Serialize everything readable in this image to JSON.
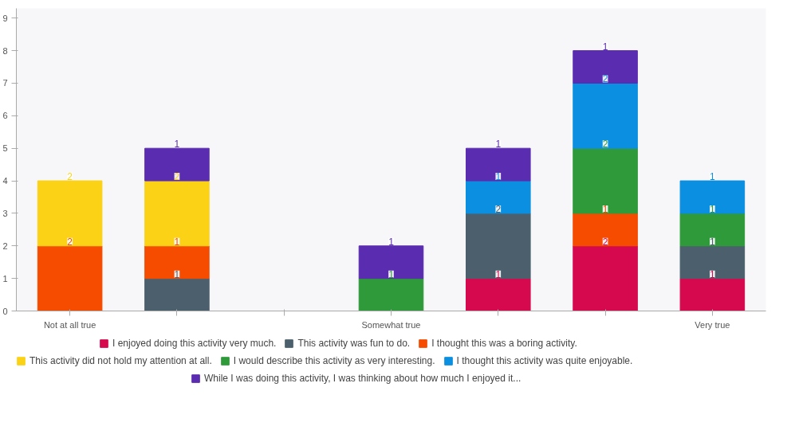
{
  "chart_data": {
    "type": "bar",
    "stacked": true,
    "categories": [
      "Not at all true",
      null,
      null,
      "Somewhat true",
      null,
      null,
      "Very true"
    ],
    "ylim": [
      0,
      9.3
    ],
    "yticks": [
      0,
      1,
      2,
      3,
      4,
      5,
      6,
      7,
      8,
      9
    ],
    "grid": false,
    "legend": "bottom",
    "data_labels": true,
    "series": [
      {
        "name": "I enjoyed doing this activity very much.",
        "color": "#d6094f",
        "values": [
          null,
          null,
          null,
          null,
          1,
          2,
          1
        ]
      },
      {
        "name": "This activity was fun to do.",
        "color": "#4b606c",
        "values": [
          null,
          1,
          null,
          null,
          2,
          null,
          1
        ]
      },
      {
        "name": "I thought this was a boring activity.",
        "color": "#f54c00",
        "values": [
          2,
          1,
          null,
          null,
          null,
          1,
          null
        ]
      },
      {
        "name": "This activity did not hold my attention at all.",
        "color": "#fbd215",
        "values": [
          2,
          2,
          null,
          null,
          null,
          null,
          null
        ]
      },
      {
        "name": "I would describe this activity as very interesting.",
        "color": "#2f9a3a",
        "values": [
          null,
          null,
          null,
          1,
          null,
          2,
          1
        ]
      },
      {
        "name": "I thought this activity was quite enjoyable.",
        "color": "#0b8fe0",
        "values": [
          null,
          null,
          null,
          null,
          1,
          2,
          1
        ]
      },
      {
        "name": "While I was doing this activity, I was thinking about how much I enjoyed it...",
        "color": "#5a2cb0",
        "values": [
          null,
          1,
          null,
          1,
          1,
          1,
          null
        ]
      }
    ]
  }
}
